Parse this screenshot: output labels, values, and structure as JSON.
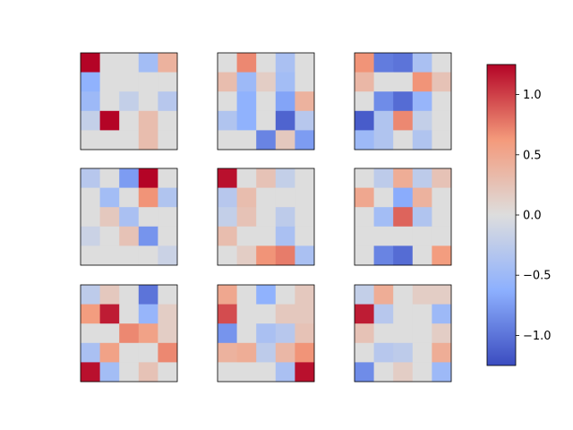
{
  "chart_data": {
    "type": "heatmap",
    "layout": "3x3 grid of 5x5 heatmaps with shared colorbar",
    "colormap": "coolwarm",
    "vmin": -1.25,
    "vmax": 1.25,
    "axes_ticks_visible": false,
    "grid": false,
    "colorbar": {
      "placement": "right",
      "ticks": [
        1.0,
        0.5,
        0.0,
        -0.5,
        -1.0
      ],
      "tick_labels": [
        "1.0",
        "0.5",
        "0.0",
        "−0.5",
        "−1.0"
      ]
    },
    "matrices": [
      [
        [
          1.25,
          0,
          0,
          -0.45,
          0.4
        ],
        [
          -0.6,
          0,
          0,
          0,
          0
        ],
        [
          -0.5,
          0,
          -0.2,
          0,
          -0.3
        ],
        [
          -0.2,
          1.25,
          0,
          0.3,
          0
        ],
        [
          0,
          0,
          0,
          0.3,
          0
        ]
      ],
      [
        [
          0,
          0.7,
          0,
          -0.4,
          0
        ],
        [
          0.3,
          -0.5,
          0.15,
          -0.45,
          0
        ],
        [
          0,
          -0.6,
          0,
          -0.7,
          0.4
        ],
        [
          -0.35,
          -0.6,
          0,
          -1.1,
          -0.3
        ],
        [
          0,
          0,
          -0.9,
          0.2,
          -0.75
        ]
      ],
      [
        [
          0.65,
          -0.95,
          -1.0,
          -0.4,
          0
        ],
        [
          0.35,
          0,
          0,
          0.65,
          0.25
        ],
        [
          0,
          -0.85,
          -1.05,
          -0.55,
          0
        ],
        [
          -1.15,
          -0.35,
          0.7,
          -0.2,
          0
        ],
        [
          -0.5,
          -0.35,
          0,
          -0.35,
          0
        ]
      ],
      [
        [
          -0.3,
          0,
          -0.75,
          1.25,
          0
        ],
        [
          0,
          -0.45,
          0,
          0.65,
          -0.35
        ],
        [
          0,
          0.2,
          -0.4,
          0,
          0
        ],
        [
          -0.15,
          0,
          0.25,
          -0.8,
          0
        ],
        [
          0,
          0,
          0,
          0,
          -0.15
        ]
      ],
      [
        [
          1.2,
          0,
          0.25,
          -0.2,
          0
        ],
        [
          -0.3,
          0.3,
          0,
          0,
          0
        ],
        [
          -0.2,
          0.25,
          0,
          -0.25,
          0
        ],
        [
          0.3,
          0,
          0,
          -0.4,
          0
        ],
        [
          0,
          0.15,
          0.65,
          0.75,
          -0.4
        ]
      ],
      [
        [
          0,
          -0.25,
          0.45,
          -0.25,
          0.25
        ],
        [
          0.5,
          0,
          -0.65,
          0.4,
          0
        ],
        [
          0,
          -0.45,
          0.85,
          -0.35,
          0
        ],
        [
          0,
          0,
          0,
          0,
          0
        ],
        [
          0,
          -0.9,
          -1.05,
          0,
          0.6
        ]
      ],
      [
        [
          -0.25,
          0.2,
          0,
          -1.0,
          0
        ],
        [
          0.6,
          1.15,
          0,
          -0.55,
          0.15
        ],
        [
          0,
          0,
          0.7,
          0.55,
          0.15
        ],
        [
          -0.4,
          0.55,
          0,
          0,
          0.7
        ],
        [
          1.2,
          -0.45,
          0,
          0.25,
          0
        ]
      ],
      [
        [
          0.5,
          0,
          -0.6,
          0,
          0.2
        ],
        [
          0.95,
          0,
          0,
          0.2,
          0.2
        ],
        [
          -0.8,
          0,
          -0.4,
          -0.3,
          0.25
        ],
        [
          0.4,
          0.45,
          -0.25,
          0.35,
          0.65
        ],
        [
          0,
          0,
          0,
          -0.4,
          1.2
        ]
      ],
      [
        [
          -0.2,
          0.45,
          0,
          0.15,
          0.15
        ],
        [
          1.15,
          -0.3,
          0,
          0,
          -0.5
        ],
        [
          0.25,
          0,
          0,
          0,
          0.15
        ],
        [
          0,
          -0.3,
          -0.25,
          0,
          0.45
        ],
        [
          -0.85,
          0,
          0.15,
          0,
          -0.5
        ]
      ]
    ]
  }
}
